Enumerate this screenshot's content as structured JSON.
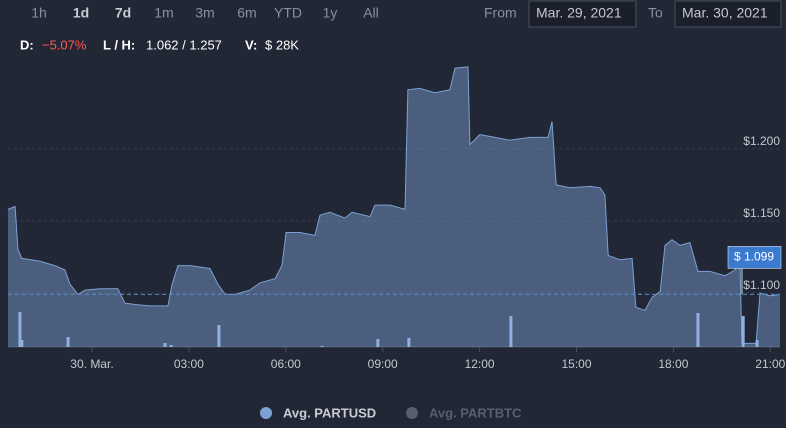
{
  "toolbar": {
    "buttons": [
      "1h",
      "1d",
      "7d",
      "1m",
      "3m",
      "6m",
      "YTD",
      "1y",
      "All"
    ],
    "active": [
      1,
      2
    ],
    "from_label": "From",
    "from_value": "Mar. 29, 2021",
    "to_label": "To",
    "to_value": "Mar. 30, 2021"
  },
  "info": {
    "d_label": "D:",
    "d_value": "−5.07%",
    "lh_label": "L / H:",
    "lh_value": "1.062 / 1.257",
    "v_label": "V:",
    "v_value": "$ 28K"
  },
  "chart_data": {
    "type": "area",
    "xlim": [
      -2.6,
      21.3
    ],
    "xticks": [
      {
        "value": 0,
        "label": "30. Mar."
      },
      {
        "value": 3,
        "label": "03:00"
      },
      {
        "value": 6,
        "label": "06:00"
      },
      {
        "value": 9,
        "label": "09:00"
      },
      {
        "value": 12,
        "label": "12:00"
      },
      {
        "value": 15,
        "label": "15:00"
      },
      {
        "value": 18,
        "label": "18:00"
      },
      {
        "value": 21,
        "label": "21:00"
      }
    ],
    "ylim": [
      1.0625,
      1.2756
    ],
    "yticks": [
      {
        "value": 1.1,
        "label": "$1.100"
      },
      {
        "value": 1.15,
        "label": "$1.150"
      },
      {
        "value": 1.2,
        "label": "$1.200"
      }
    ],
    "grid": true,
    "series": [
      {
        "name": "Avg. PARTUSD",
        "color": "#7ea1d4",
        "visible": true,
        "x": [
          -2.6,
          -2.38,
          -2.29,
          -2.17,
          -1.61,
          -1.15,
          -0.84,
          -0.68,
          -0.43,
          -0.22,
          0.25,
          0.8,
          1.02,
          1.33,
          1.8,
          2.35,
          2.48,
          2.66,
          3.03,
          3.65,
          3.9,
          4.12,
          4.43,
          4.89,
          5.2,
          5.67,
          5.88,
          6.01,
          6.44,
          6.9,
          7.06,
          7.37,
          7.83,
          8.05,
          8.61,
          8.76,
          9.23,
          9.69,
          9.78,
          10.15,
          10.62,
          11.08,
          11.24,
          11.64,
          11.7,
          12.01,
          12.48,
          12.94,
          13.56,
          14.12,
          14.24,
          14.37,
          14.8,
          15.42,
          15.73,
          15.88,
          15.98,
          16.35,
          16.72,
          16.84,
          17.12,
          17.34,
          17.59,
          17.74,
          17.96,
          18.2,
          18.51,
          18.76,
          19.13,
          19.6,
          19.91,
          20.06,
          20.12,
          20.56,
          20.68,
          20.99,
          21.3
        ],
        "values": [
          1.158,
          1.16,
          1.13,
          1.124,
          1.122,
          1.119,
          1.116,
          1.106,
          1.099,
          1.102,
          1.103,
          1.103,
          1.093,
          1.092,
          1.091,
          1.091,
          1.106,
          1.119,
          1.119,
          1.117,
          1.106,
          1.099,
          1.099,
          1.102,
          1.107,
          1.11,
          1.119,
          1.142,
          1.142,
          1.14,
          1.154,
          1.156,
          1.152,
          1.156,
          1.153,
          1.161,
          1.161,
          1.158,
          1.241,
          1.242,
          1.239,
          1.241,
          1.256,
          1.257,
          1.203,
          1.21,
          1.208,
          1.206,
          1.208,
          1.208,
          1.219,
          1.175,
          1.173,
          1.174,
          1.173,
          1.168,
          1.126,
          1.123,
          1.124,
          1.09,
          1.088,
          1.097,
          1.101,
          1.133,
          1.137,
          1.133,
          1.135,
          1.115,
          1.115,
          1.112,
          1.116,
          1.123,
          1.065,
          1.065,
          1.1,
          1.098,
          1.099
        ]
      },
      {
        "name": "Avg. PARTBTC",
        "color": "#5a5f6b",
        "visible": false
      }
    ],
    "current_price": {
      "value": 1.099,
      "label": "$ 1.099"
    },
    "volume": {
      "color": "#8fb0e0",
      "ylim": [
        0,
        100
      ],
      "x": [
        -2.23,
        -2.17,
        -0.74,
        2.26,
        2.45,
        3.93,
        7.12,
        8.85,
        9.81,
        12.97,
        18.76,
        20.16,
        20.59
      ],
      "values": [
        35,
        7,
        10,
        4,
        2,
        22,
        1,
        8,
        9,
        31,
        34,
        31,
        7
      ]
    }
  }
}
